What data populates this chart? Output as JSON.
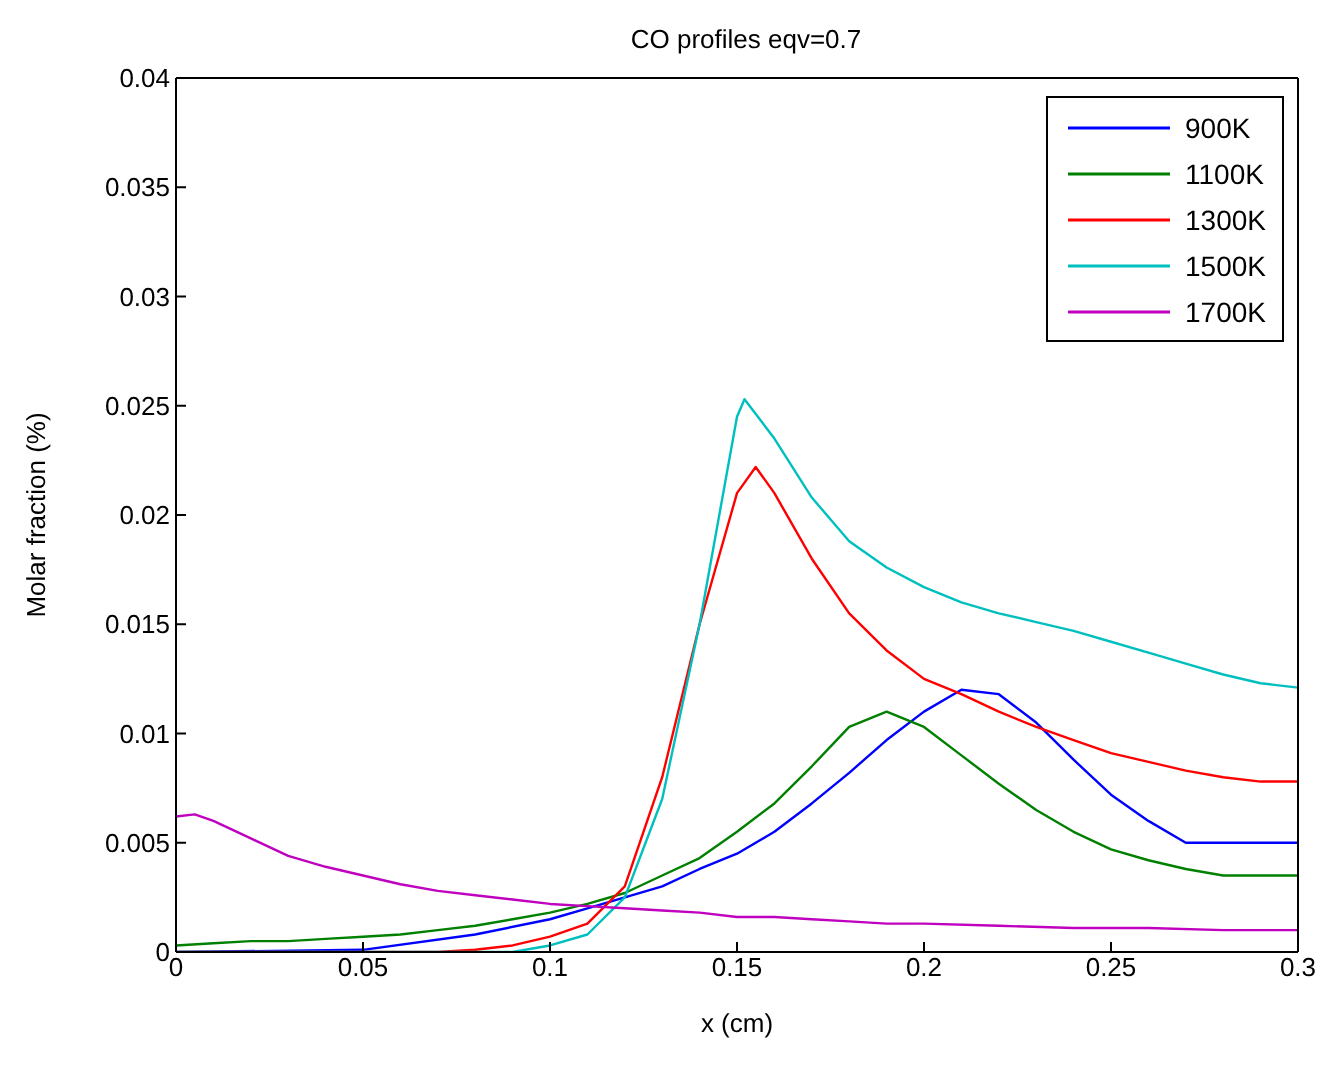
{
  "chart_data": {
    "type": "line",
    "title": "CO profiles eqv=0.7",
    "xlabel": "x (cm)",
    "ylabel": "Molar fraction (%)",
    "xlim": [
      0,
      0.3
    ],
    "xticks": [
      0,
      0.05,
      0.1,
      0.15,
      0.2,
      0.25,
      0.3
    ],
    "ylim": [
      0,
      0.04
    ],
    "yticks": [
      0,
      0.005,
      0.01,
      0.015,
      0.02,
      0.025,
      0.03,
      0.035,
      0.04
    ],
    "grid": false,
    "legend": "top right",
    "marker": "none",
    "line_style": "solid",
    "series": [
      {
        "name": "900K",
        "color": "#0000ff",
        "x": [
          0,
          0.05,
          0.08,
          0.1,
          0.11,
          0.12,
          0.13,
          0.14,
          0.15,
          0.16,
          0.17,
          0.18,
          0.19,
          0.2,
          0.21,
          0.22,
          0.23,
          0.24,
          0.25,
          0.26,
          0.27,
          0.28,
          0.29,
          0.3
        ],
        "values": [
          0,
          0.0001,
          0.0008,
          0.0015,
          0.002,
          0.0025,
          0.003,
          0.0038,
          0.0045,
          0.0055,
          0.0068,
          0.0082,
          0.0097,
          0.011,
          0.012,
          0.0118,
          0.0105,
          0.0088,
          0.0072,
          0.006,
          0.005,
          0.005,
          0.005,
          0.005
        ]
      },
      {
        "name": "1100K",
        "color": "#008000",
        "x": [
          0,
          0.01,
          0.02,
          0.03,
          0.04,
          0.05,
          0.06,
          0.07,
          0.08,
          0.09,
          0.1,
          0.11,
          0.12,
          0.13,
          0.14,
          0.15,
          0.16,
          0.17,
          0.18,
          0.19,
          0.2,
          0.21,
          0.22,
          0.23,
          0.24,
          0.25,
          0.26,
          0.27,
          0.28,
          0.29,
          0.3
        ],
        "values": [
          0.0003,
          0.0004,
          0.0005,
          0.0005,
          0.0006,
          0.0007,
          0.0008,
          0.001,
          0.0012,
          0.0015,
          0.0018,
          0.0022,
          0.0027,
          0.0035,
          0.0043,
          0.0055,
          0.0068,
          0.0085,
          0.0103,
          0.011,
          0.0103,
          0.009,
          0.0077,
          0.0065,
          0.0055,
          0.0047,
          0.0042,
          0.0038,
          0.0035,
          0.0035,
          0.0035
        ]
      },
      {
        "name": "1300K",
        "color": "#ff0000",
        "x": [
          0,
          0.07,
          0.08,
          0.09,
          0.1,
          0.11,
          0.12,
          0.13,
          0.14,
          0.15,
          0.155,
          0.16,
          0.17,
          0.18,
          0.19,
          0.2,
          0.21,
          0.22,
          0.23,
          0.24,
          0.25,
          0.26,
          0.27,
          0.28,
          0.29,
          0.3
        ],
        "values": [
          0,
          0,
          0.0001,
          0.0003,
          0.0007,
          0.0013,
          0.003,
          0.008,
          0.015,
          0.021,
          0.0222,
          0.021,
          0.018,
          0.0155,
          0.0138,
          0.0125,
          0.0118,
          0.011,
          0.0103,
          0.0097,
          0.0091,
          0.0087,
          0.0083,
          0.008,
          0.0078,
          0.0078
        ]
      },
      {
        "name": "1500K",
        "color": "#00bfbf",
        "x": [
          0,
          0.09,
          0.1,
          0.11,
          0.12,
          0.13,
          0.14,
          0.15,
          0.152,
          0.16,
          0.17,
          0.18,
          0.19,
          0.2,
          0.21,
          0.22,
          0.23,
          0.24,
          0.25,
          0.26,
          0.27,
          0.28,
          0.29,
          0.3
        ],
        "values": [
          0,
          0,
          0.0003,
          0.0008,
          0.0025,
          0.007,
          0.015,
          0.0245,
          0.0253,
          0.0235,
          0.0208,
          0.0188,
          0.0176,
          0.0167,
          0.016,
          0.0155,
          0.0151,
          0.0147,
          0.0142,
          0.0137,
          0.0132,
          0.0127,
          0.0123,
          0.0121
        ]
      },
      {
        "name": "1700K",
        "color": "#bf00bf",
        "x": [
          0,
          0.005,
          0.01,
          0.02,
          0.03,
          0.04,
          0.05,
          0.06,
          0.07,
          0.08,
          0.09,
          0.1,
          0.11,
          0.12,
          0.13,
          0.14,
          0.15,
          0.16,
          0.17,
          0.18,
          0.19,
          0.2,
          0.22,
          0.24,
          0.26,
          0.28,
          0.3
        ],
        "values": [
          0.0062,
          0.0063,
          0.006,
          0.0052,
          0.0044,
          0.0039,
          0.0035,
          0.0031,
          0.0028,
          0.0026,
          0.0024,
          0.0022,
          0.0021,
          0.002,
          0.0019,
          0.0018,
          0.0016,
          0.0016,
          0.0015,
          0.0014,
          0.0013,
          0.0013,
          0.0012,
          0.0011,
          0.0011,
          0.001,
          0.001
        ]
      }
    ]
  }
}
